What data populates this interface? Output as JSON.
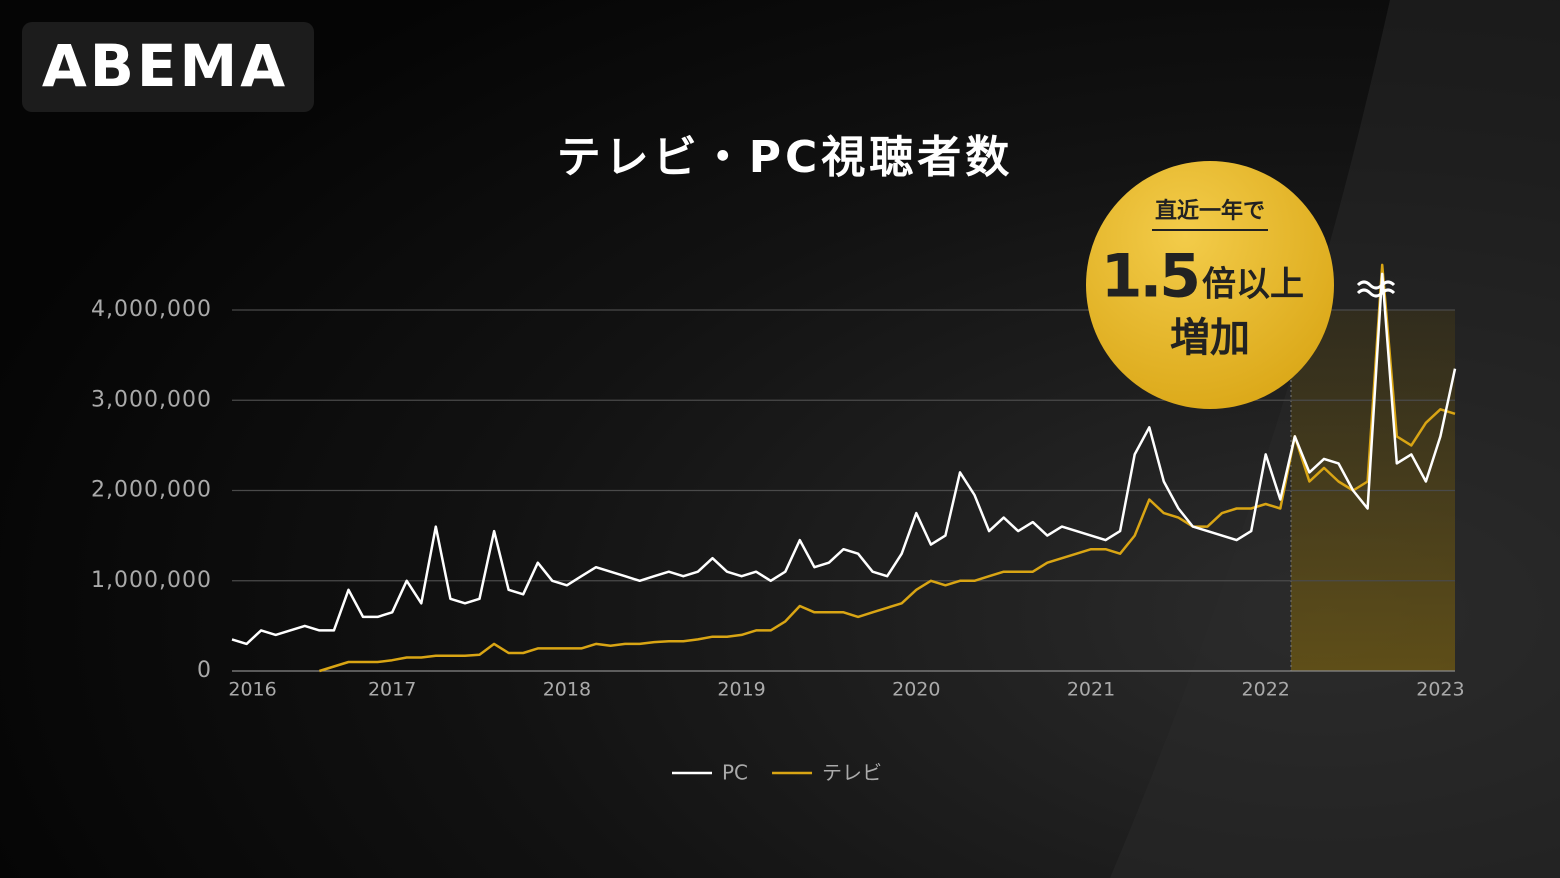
{
  "logo": "ABEMA",
  "chart_data": {
    "type": "line",
    "title": "テレビ・PC視聴者数",
    "annotations": [
      "直近一年で",
      "1.5",
      "倍以上",
      "増加"
    ],
    "categories": [
      null,
      "2016",
      null,
      null,
      null,
      null,
      null,
      null,
      null,
      null,
      null,
      "2017",
      null,
      null,
      null,
      null,
      null,
      null,
      null,
      null,
      null,
      null,
      null,
      "2018",
      null,
      null,
      null,
      null,
      null,
      null,
      null,
      null,
      null,
      null,
      null,
      "2019",
      null,
      null,
      null,
      null,
      null,
      null,
      null,
      null,
      null,
      null,
      null,
      "2020",
      null,
      null,
      null,
      null,
      null,
      null,
      null,
      null,
      null,
      null,
      null,
      "2021",
      null,
      null,
      null,
      null,
      null,
      null,
      null,
      null,
      null,
      null,
      null,
      "2022",
      null,
      null,
      null,
      null,
      null,
      null,
      null,
      null,
      null,
      null,
      null,
      "2023",
      null
    ],
    "series": [
      {
        "name": "PC",
        "color": "#ffffff",
        "values": [
          350000,
          300000,
          450000,
          400000,
          450000,
          500000,
          450000,
          450000,
          900000,
          600000,
          600000,
          650000,
          1000000,
          750000,
          1600000,
          800000,
          750000,
          800000,
          1550000,
          900000,
          850000,
          1200000,
          1000000,
          950000,
          1050000,
          1150000,
          1100000,
          1050000,
          1000000,
          1050000,
          1100000,
          1050000,
          1100000,
          1250000,
          1100000,
          1050000,
          1100000,
          1000000,
          1100000,
          1450000,
          1150000,
          1200000,
          1350000,
          1300000,
          1100000,
          1050000,
          1300000,
          1750000,
          1400000,
          1500000,
          2200000,
          1950000,
          1550000,
          1700000,
          1550000,
          1650000,
          1500000,
          1600000,
          1550000,
          1500000,
          1450000,
          1550000,
          2400000,
          2700000,
          2100000,
          1800000,
          1600000,
          1550000,
          1500000,
          1450000,
          1550000,
          2400000,
          1900000,
          2600000,
          2200000,
          2350000,
          2300000,
          2000000,
          1800000,
          4400000,
          2300000,
          2400000,
          2100000,
          2600000,
          3350000
        ]
      },
      {
        "name": "テレビ",
        "color": "#d9a514",
        "values": [
          null,
          null,
          null,
          null,
          null,
          null,
          0,
          50000,
          100000,
          100000,
          100000,
          120000,
          150000,
          150000,
          170000,
          170000,
          170000,
          180000,
          300000,
          200000,
          200000,
          250000,
          250000,
          250000,
          250000,
          300000,
          280000,
          300000,
          300000,
          320000,
          330000,
          330000,
          350000,
          380000,
          380000,
          400000,
          450000,
          450000,
          550000,
          720000,
          650000,
          650000,
          650000,
          600000,
          650000,
          700000,
          750000,
          900000,
          1000000,
          950000,
          1000000,
          1000000,
          1050000,
          1100000,
          1100000,
          1100000,
          1200000,
          1250000,
          1300000,
          1350000,
          1350000,
          1300000,
          1500000,
          1900000,
          1750000,
          1700000,
          1600000,
          1600000,
          1750000,
          1800000,
          1800000,
          1850000,
          1800000,
          2600000,
          2100000,
          2250000,
          2100000,
          2000000,
          2100000,
          4500000,
          2600000,
          2500000,
          2750000,
          2900000,
          2850000
        ]
      }
    ],
    "ylim": [
      0,
      4000000
    ],
    "yticks": [
      0,
      {
        "value": 1000000,
        "label": "1,000,000"
      },
      {
        "value": 2000000,
        "label": "2,000,000"
      },
      {
        "value": 3000000,
        "label": "3,000,000"
      },
      {
        "value": 4000000,
        "label": "4,000,000"
      }
    ],
    "grid": true
  }
}
